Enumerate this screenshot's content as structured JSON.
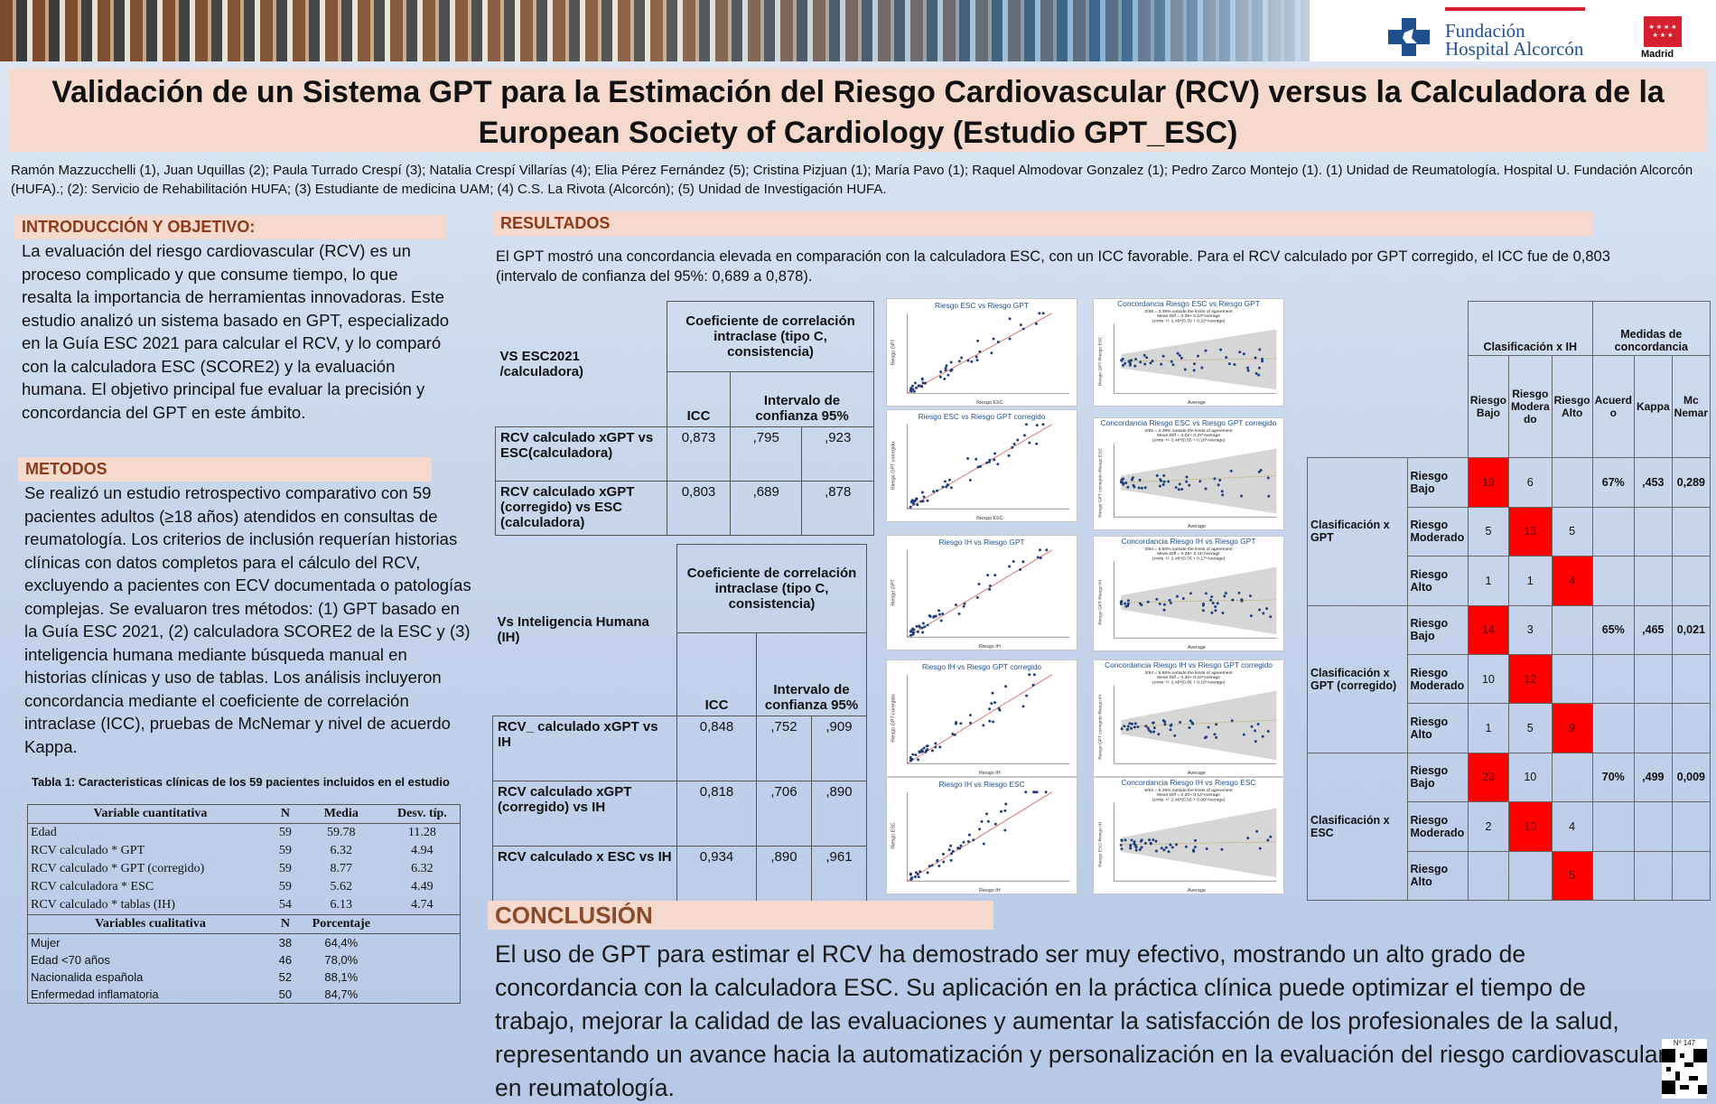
{
  "header": {
    "logo_line1": "Fundación",
    "logo_line2": "Hospital Alcorcón",
    "madrid_label": "Madrid",
    "brand_blue": "#1e4f8f",
    "brand_red": "#d62030"
  },
  "title": "Validación de un Sistema GPT para la Estimación del Riesgo Cardiovascular (RCV) versus la Calculadora de la European Society of Cardiology (Estudio GPT_ESC)",
  "authors": "Ramón Mazzucchelli (1), Juan Uquillas (2); Paula Turrado Crespí (3); Natalia Crespí Villarías (4); Elia Pérez Fernández (5); Cristina Pizjuan (1); María Pavo (1); Raquel  Almodovar Gonzalez (1); Pedro Zarco Montejo (1).  (1) Unidad de Reumatología. Hospital U. Fundación Alcorcón (HUFA).;  (2): Servicio de Rehabilitación HUFA; (3) Estudiante de medicina UAM;  (4) C.S. La Rivota (Alcorcón); (5) Unidad de Investigación HUFA.",
  "intro": {
    "heading": "INTRODUCCIÓN Y OBJETIVO:",
    "text": "La evaluación del riesgo cardiovascular (RCV) es un proceso complicado y que consume tiempo, lo que resalta la importancia de herramientas innovadoras. Este estudio analizó un sistema basado en GPT, especializado en la Guía ESC 2021 para calcular el RCV, y lo comparó con la calculadora ESC (SCORE2) y la evaluación humana. El objetivo principal fue evaluar la precisión y concordancia del GPT en este ámbito."
  },
  "methods": {
    "heading": "METODOS",
    "text": "Se realizó un estudio retrospectivo comparativo con 59 pacientes adultos (≥18 años) atendidos en consultas de reumatología. Los criterios de inclusión requerían historias clínicas con datos completos para el cálculo del RCV, excluyendo a pacientes con ECV documentada o patologías complejas. Se evaluaron tres métodos: (1) GPT basado en la Guía ESC 2021, (2) calculadora SCORE2 de la ESC y (3) inteligencia humana mediante búsqueda manual en historias clínicas y uso de tablas. Los análisis incluyeron concordancia mediante el coeficiente de correlación intraclase (ICC), pruebas de McNemar y nivel de acuerdo Kappa."
  },
  "table1": {
    "caption": "Tabla 1: Caracteristicas clínicas de los 59 pacientes incluidos en el estudio",
    "quant_headers": [
      "Variable cuantitativa",
      "N",
      "Media",
      "Desv. típ."
    ],
    "quant_rows": [
      [
        "Edad",
        "59",
        "59.78",
        "11.28"
      ],
      [
        "RCV calculado *  GPT",
        "59",
        "6.32",
        "4.94"
      ],
      [
        "RCV calculado * GPT (corregido)",
        "59",
        "8.77",
        "6.32"
      ],
      [
        "RCV calculadora * ESC",
        "59",
        "5.62",
        "4.49"
      ],
      [
        "RCV calculado * tablas (IH)",
        "54",
        "6.13",
        "4.74"
      ]
    ],
    "qual_headers": [
      "Variables cualitativa",
      "N",
      "Porcentaje"
    ],
    "qual_rows": [
      [
        "Mujer",
        "38",
        "64,4%"
      ],
      [
        "Edad <70 años",
        "46",
        "78,0%"
      ],
      [
        "Nacionalida española",
        "52",
        "88,1%"
      ],
      [
        "Enfermedad inflamatoria",
        "50",
        "84,7%"
      ]
    ]
  },
  "results": {
    "heading": "RESULTADOS",
    "text": "El GPT mostró una concordancia elevada en comparación con la calculadora ESC, con un ICC favorable. Para el RCV calculado por GPT corregido, el ICC fue de 0,803 (intervalo de confianza del 95%: 0,689 a 0,878).",
    "esc_table": {
      "corner": "VS  ESC2021 /calculadora)",
      "coef_header": "Coeficiente de correlación intraclase (tipo C, consistencia)",
      "icc_label": "ICC",
      "ci_label": "Intervalo de confianza 95%",
      "rows": [
        [
          "RCV  calculado xGPT vs ESC(calculadora)",
          "0,873",
          ",795",
          ",923"
        ],
        [
          "RCV  calculado xGPT (corregido) vs ESC (calculadora)",
          "0,803",
          ",689",
          ",878"
        ]
      ]
    },
    "ih_table": {
      "corner": "Vs Inteligencia Humana (IH)",
      "coef_header": "Coeficiente de correlación intraclase (tipo C, consistencia)",
      "icc_label": "ICC",
      "ci_label": "Intervalo de confianza 95%",
      "rows": [
        [
          "RCV_ calculado xGPT vs IH",
          "0,848",
          ",752",
          ",909"
        ],
        [
          "RCV  calculado xGPT (corregido) vs IH",
          "0,818",
          ",706",
          ",890"
        ],
        [
          "RCV calculado x ESC vs IH",
          "0,934",
          ",890",
          ",961"
        ]
      ]
    },
    "plots": {
      "scatter_titles": [
        "Riesgo ESC vs Riesgo GPT",
        "Riesgo ESC vs Riesgo GPT corregido",
        "Riesgo IH vs Riesgo GPT",
        "Riesgo IH vs Riesgo GPT corregido",
        "Riesgo IH vs Riesgo ESC"
      ],
      "ba_titles": [
        "Concordancia Riesgo ESC vs Riesgo GPT",
        "Concordancia Riesgo ESC vs Riesgo GPT corregido",
        "Concordancia Riesgo IH vs Riesgo GPT",
        "Concordancia Riesgo IH vs Riesgo GPT corregido",
        "Concordancia Riesgo IH vs Riesgo ESC"
      ],
      "ba_notes": [
        [
          "2/59 =  3.39% outside the limits of agreement",
          "Mean Diff = 0.09+ 0.10*Average",
          "Limits +/- 2.46*(0.30 + 0.22*Average)"
        ],
        [
          "2/59 =  3.39% outside the limits of agreement",
          "Mean Diff = 0.02+ 0.37*Average",
          "Limits +/- 2.46*(0.55 + 0.20*Average)"
        ],
        [
          "3/54 =  5.56% outside the limits of agreement",
          "Mean Diff = 0.28+ 0.11*Average",
          "Limits +/- 2.46*(0.76 + 0.17*Average)"
        ],
        [
          "3/54 =  5.56% outside the limits of agreement",
          "Mean Diff = 0.30+ 0.24*Average",
          "Limits +/- 2.46*(0.85 + 0.16*Average)"
        ],
        [
          "5/54 =  9.26% outside the limits of agreement",
          "Mean Diff = 0.20+ 0.12*Average",
          "Limits +/- 2.46*(0.55 + 0.06*Average)"
        ]
      ],
      "x_label_scatter": [
        "Riesgo ESC",
        "Riesgo ESC",
        "Riesgo IH",
        "Riesgo IH",
        "Riesgo IH"
      ],
      "y_label_scatter": [
        "Riesgo GPT",
        "Riesgo GPT corregido",
        "Riesgo GPT",
        "Riesgo GPT corregido",
        "Riesgo ESC"
      ],
      "x_label_ba": "Average",
      "y_label_ba": [
        "Riesgo GPT-Riesgo ESC",
        "Riesgo GPT corregido-Riesgo ESC",
        "Riesgo GPT-Riesgo IH",
        "Riesgo GPT corregido-Riesgo IH",
        "Riesgo ESC-Riesgo IH"
      ],
      "point_color": "#1e3f7a",
      "line_color": "#d9534f"
    },
    "class_table": {
      "header_class": "Clasificación x IH",
      "header_measures": "Medidas de concordancia",
      "sub_headers": [
        "Riesgo Bajo",
        "Riesgo Modera do",
        "Riesgo Alto",
        "Acuerd o",
        "Kappa",
        "Mc Nemar"
      ],
      "groups": [
        {
          "label": "Clasificación x GPT",
          "rows": [
            {
              "label": "Riesgo Bajo",
              "cells": [
                "19",
                "6",
                ""
              ],
              "red": 0,
              "measures": [
                "67%",
                ",453",
                "0,289"
              ]
            },
            {
              "label": "Riesgo Moderado",
              "cells": [
                "5",
                "13",
                "5"
              ],
              "red": 1,
              "measures": [
                "",
                "",
                ""
              ]
            },
            {
              "label": "Riesgo Alto",
              "cells": [
                "1",
                "1",
                "4"
              ],
              "red": 2,
              "measures": [
                "",
                "",
                ""
              ]
            }
          ]
        },
        {
          "label": "Clasificación x GPT (corregido)",
          "rows": [
            {
              "label": "Riesgo Bajo",
              "cells": [
                "14",
                "3",
                ""
              ],
              "red": 0,
              "measures": [
                "65%",
                ",465",
                "0,021"
              ]
            },
            {
              "label": "Riesgo Moderado",
              "cells": [
                "10",
                "12",
                ""
              ],
              "red": 1,
              "measures": [
                "",
                "",
                ""
              ]
            },
            {
              "label": "Riesgo Alto",
              "cells": [
                "1",
                "5",
                "9"
              ],
              "red": 2,
              "measures": [
                "",
                "",
                ""
              ]
            }
          ]
        },
        {
          "label": "Clasificación x ESC",
          "rows": [
            {
              "label": "Riesgo Bajo",
              "cells": [
                "23",
                "10",
                ""
              ],
              "red": 0,
              "measures": [
                "70%",
                ",499",
                "0,009"
              ]
            },
            {
              "label": "Riesgo Moderado",
              "cells": [
                "2",
                "10",
                "4"
              ],
              "red": 1,
              "measures": [
                "",
                "",
                ""
              ]
            },
            {
              "label": "Riesgo Alto",
              "cells": [
                "",
                "",
                "5"
              ],
              "red": 2,
              "measures": [
                "",
                "",
                ""
              ]
            }
          ]
        }
      ]
    }
  },
  "conclusion": {
    "heading": "CONCLUSIÓN",
    "text": "El uso de GPT para estimar el RCV ha demostrado ser muy efectivo, mostrando un alto grado de concordancia con la calculadora ESC. Su aplicación en la práctica clínica puede optimizar el tiempo de trabajo, mejorar la calidad de las evaluaciones y aumentar la satisfacción de los profesionales de la salud, representando un avance hacia la automatización y personalización en la evaluación del riesgo cardiovascular en reumatología."
  },
  "poster_number": "Nº 147"
}
